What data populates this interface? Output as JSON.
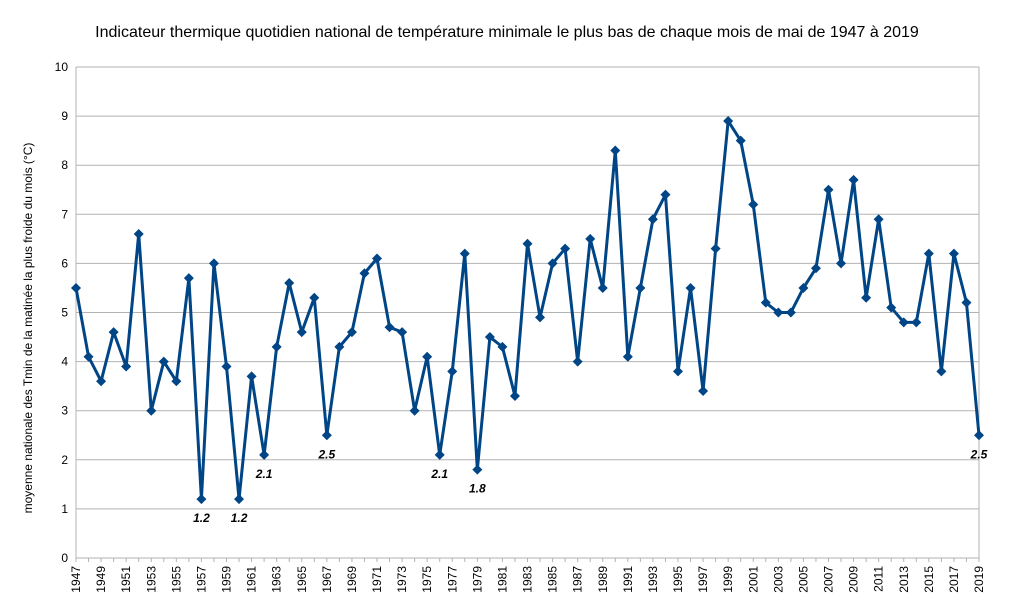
{
  "chart_data": {
    "type": "line",
    "title": "Indicateur thermique quotidien national de température minimale le plus bas de chaque mois de mai de 1947 à 2019",
    "xlabel": "",
    "ylabel": "moyenne nationale des Tmin de la matinée la plus froide du mois (°C)",
    "ylim": [
      0,
      10
    ],
    "yticks": [
      "0",
      "1",
      "2",
      "3",
      "4",
      "5",
      "6",
      "7",
      "8",
      "9",
      "10"
    ],
    "grid": true,
    "legend": "none",
    "x": [
      1947,
      1948,
      1949,
      1950,
      1951,
      1952,
      1953,
      1954,
      1955,
      1956,
      1957,
      1958,
      1959,
      1960,
      1961,
      1962,
      1963,
      1964,
      1965,
      1966,
      1967,
      1968,
      1969,
      1970,
      1971,
      1972,
      1973,
      1974,
      1975,
      1976,
      1977,
      1978,
      1979,
      1980,
      1981,
      1982,
      1983,
      1984,
      1985,
      1986,
      1987,
      1988,
      1989,
      1990,
      1991,
      1992,
      1993,
      1994,
      1995,
      1996,
      1997,
      1998,
      1999,
      2000,
      2001,
      2002,
      2003,
      2004,
      2005,
      2006,
      2007,
      2008,
      2009,
      2010,
      2011,
      2012,
      2013,
      2014,
      2015,
      2016,
      2017,
      2018,
      2019
    ],
    "xtick_labels": [
      "1947",
      "1949",
      "1951",
      "1953",
      "1955",
      "1957",
      "1959",
      "1961",
      "1963",
      "1965",
      "1967",
      "1969",
      "1971",
      "1973",
      "1975",
      "1977",
      "1979",
      "1981",
      "1983",
      "1985",
      "1987",
      "1989",
      "1991",
      "1993",
      "1995",
      "1997",
      "1999",
      "2001",
      "2003",
      "2005",
      "2007",
      "2009",
      "2011",
      "2013",
      "2015",
      "2017",
      "2019"
    ],
    "series": [
      {
        "values": [
          5.5,
          4.1,
          3.6,
          4.6,
          3.9,
          6.6,
          3.0,
          4.0,
          3.6,
          5.7,
          1.2,
          6.0,
          3.9,
          1.2,
          3.7,
          2.1,
          4.3,
          5.6,
          4.6,
          5.3,
          2.5,
          4.3,
          4.6,
          5.8,
          6.1,
          4.7,
          4.6,
          3.0,
          4.1,
          2.1,
          3.8,
          6.2,
          1.8,
          4.5,
          4.3,
          3.3,
          6.4,
          4.9,
          6.0,
          6.3,
          4.0,
          6.5,
          5.5,
          8.3,
          4.1,
          5.5,
          6.9,
          7.4,
          3.8,
          5.5,
          3.4,
          6.3,
          8.9,
          8.5,
          7.2,
          5.2,
          5.0,
          5.0,
          5.5,
          5.9,
          7.5,
          6.0,
          7.7,
          5.3,
          6.9,
          5.1,
          4.8,
          4.8,
          6.2,
          3.8,
          6.2,
          5.2,
          2.5
        ],
        "color": "#004586"
      }
    ],
    "data_labels": [
      {
        "x": 1957,
        "value": 1.2,
        "text": "1.2"
      },
      {
        "x": 1960,
        "value": 1.2,
        "text": "1.2"
      },
      {
        "x": 1962,
        "value": 2.1,
        "text": "2.1"
      },
      {
        "x": 1967,
        "value": 2.5,
        "text": "2.5"
      },
      {
        "x": 1976,
        "value": 2.1,
        "text": "2.1"
      },
      {
        "x": 1979,
        "value": 1.8,
        "text": "1.8"
      },
      {
        "x": 2019,
        "value": 2.5,
        "text": "2.5"
      }
    ],
    "colors": {
      "line": "#004586",
      "grid": "#b3b3b3",
      "axis": "#b3b3b3"
    }
  }
}
